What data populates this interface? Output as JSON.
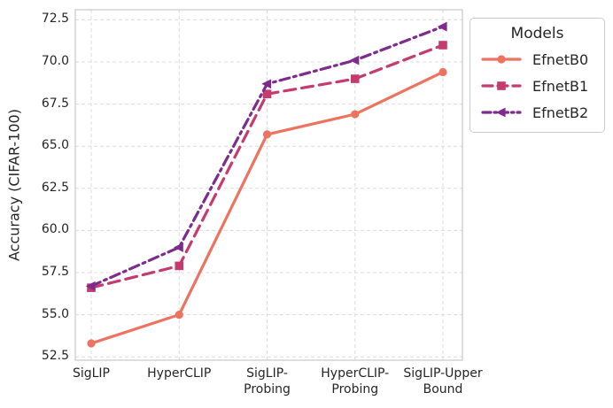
{
  "chart_data": {
    "type": "line",
    "title": "",
    "xlabel": "",
    "ylabel": "Accuracy (CIFAR-100)",
    "categories": [
      "SigLIP",
      "HyperCLIP",
      "SigLIP-\nProbing",
      "HyperCLIP-\nProbing",
      "SigLIP-Upper\nBound"
    ],
    "series": [
      {
        "name": "EfnetB0",
        "values": [
          53.3,
          55.0,
          65.7,
          66.9,
          69.4
        ],
        "color": "#ed7360",
        "line_style": "solid",
        "marker": "circle"
      },
      {
        "name": "EfnetB1",
        "values": [
          56.6,
          57.9,
          68.1,
          69.0,
          71.0
        ],
        "color": "#c53a6f",
        "line_style": "dashed",
        "marker": "square"
      },
      {
        "name": "EfnetB2",
        "values": [
          56.7,
          59.0,
          68.7,
          70.1,
          72.1
        ],
        "color": "#7d2c8d",
        "line_style": "dashdot",
        "marker": "triangle-left"
      }
    ],
    "legend_title": "Models",
    "legend_position": "outside-upper-right",
    "y_ticks": [
      52.5,
      55.0,
      57.5,
      60.0,
      62.5,
      65.0,
      67.5,
      70.0,
      72.5
    ],
    "ylim": [
      52.3,
      73.1
    ],
    "grid": true,
    "grid_style": "dashed",
    "grid_color": "#dcdcdc",
    "spine_color": "#cccccc",
    "text_color": "#262626",
    "background_color": "#ffffff"
  }
}
